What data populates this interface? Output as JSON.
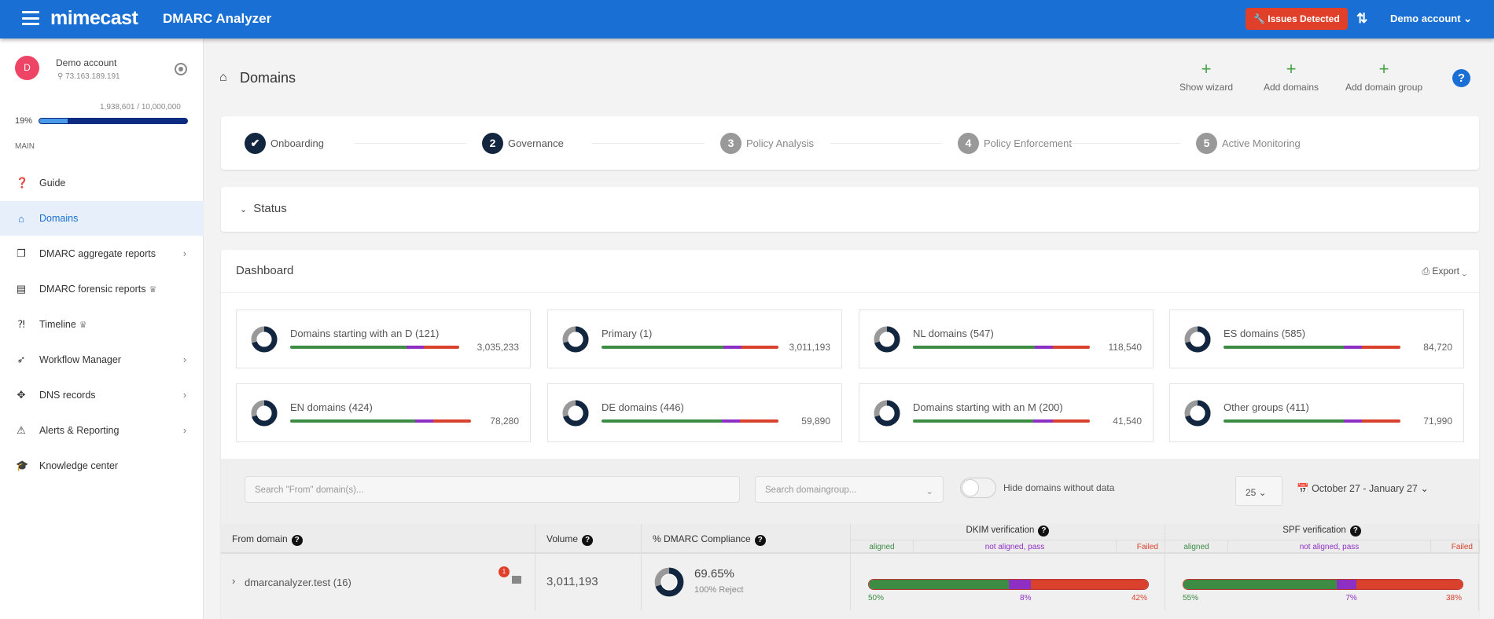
{
  "header": {
    "logo": "mimecast",
    "app_title": "DMARC Analyzer",
    "issues_label": "Issues Detected",
    "account_label": "Demo account ⌄"
  },
  "sidebar": {
    "avatar_letter": "D",
    "account_name": "Demo account",
    "ip": "73.163.189.191",
    "quota": "1,938,601 / 10,000,000",
    "quota_pct_label": "19%",
    "quota_fraction": 0.19,
    "section_label": "MAIN",
    "items": [
      {
        "label": "Guide",
        "icon": "guide-icon",
        "glyph": "❓",
        "chev": false,
        "crown": false,
        "active": false
      },
      {
        "label": "Domains",
        "icon": "home-icon",
        "glyph": "⌂",
        "chev": false,
        "crown": false,
        "active": true
      },
      {
        "label": "DMARC aggregate reports",
        "icon": "copy-icon",
        "glyph": "❐",
        "chev": true,
        "crown": false,
        "active": false
      },
      {
        "label": "DMARC forensic reports",
        "icon": "file-icon",
        "glyph": "▤",
        "chev": false,
        "crown": true,
        "active": false
      },
      {
        "label": "Timeline",
        "icon": "timeline-icon",
        "glyph": "⁈",
        "chev": false,
        "crown": true,
        "active": false
      },
      {
        "label": "Workflow Manager",
        "icon": "rocket-icon",
        "glyph": "➶",
        "chev": true,
        "crown": false,
        "active": false
      },
      {
        "label": "DNS records",
        "icon": "lifebuoy-icon",
        "glyph": "✥",
        "chev": true,
        "crown": false,
        "active": false
      },
      {
        "label": "Alerts & Reporting",
        "icon": "warning-icon",
        "glyph": "⚠",
        "chev": true,
        "crown": false,
        "active": false
      },
      {
        "label": "Knowledge center",
        "icon": "graduation-cap-icon",
        "glyph": "🎓",
        "chev": false,
        "crown": false,
        "active": false
      }
    ]
  },
  "page": {
    "title": "Domains",
    "actions": [
      "Show wizard",
      "Add domains",
      "Add domain group"
    ]
  },
  "stepper": [
    {
      "num": "✔",
      "label": "Onboarding",
      "state": "done"
    },
    {
      "num": "2",
      "label": "Governance",
      "state": "cur"
    },
    {
      "num": "3",
      "label": "Policy Analysis",
      "state": "todo"
    },
    {
      "num": "4",
      "label": "Policy Enforcement",
      "state": "todo"
    },
    {
      "num": "5",
      "label": "Active Monitoring",
      "state": "todo"
    }
  ],
  "status": {
    "label": "Status"
  },
  "dashboard": {
    "title": "Dashboard",
    "export_label": "Export ⌄",
    "groups": [
      {
        "name": "Domains starting with an D (121)",
        "value": "3,035,233",
        "split": [
          0.69,
          0.1,
          0.21
        ]
      },
      {
        "name": "Primary (1)",
        "value": "3,011,193",
        "split": [
          0.69,
          0.1,
          0.21
        ]
      },
      {
        "name": "NL domains (547)",
        "value": "118,540",
        "split": [
          0.69,
          0.1,
          0.21
        ]
      },
      {
        "name": "ES domains (585)",
        "value": "84,720",
        "split": [
          0.68,
          0.1,
          0.22
        ]
      },
      {
        "name": "EN domains (424)",
        "value": "78,280",
        "split": [
          0.69,
          0.1,
          0.21
        ]
      },
      {
        "name": "DE domains (446)",
        "value": "59,890",
        "split": [
          0.68,
          0.1,
          0.22
        ]
      },
      {
        "name": "Domains starting with an M (200)",
        "value": "41,540",
        "split": [
          0.68,
          0.11,
          0.21
        ]
      },
      {
        "name": "Other groups (411)",
        "value": "71,990",
        "split": [
          0.68,
          0.1,
          0.22
        ]
      }
    ]
  },
  "filters": {
    "search_placeholder": "Search \"From\" domain(s)...",
    "group_placeholder": "Search domaingroup...",
    "hide_label": "Hide domains without data",
    "page_size": "25 ⌄",
    "date_range": "October 27 - January 27 ⌄"
  },
  "table": {
    "headers": {
      "from": "From domain",
      "volume": "Volume",
      "compliance": "% DMARC Compliance",
      "dkim": "DKIM verification",
      "spf": "SPF verification"
    },
    "sub": {
      "aligned": "aligned",
      "notaligned": "not aligned, pass",
      "failed": "Failed"
    },
    "row": {
      "domain": "dmarcanalyzer.test (16)",
      "badge": "1",
      "volume": "3,011,193",
      "compliance": "69.65%",
      "policy": "100% Reject",
      "dkim": {
        "aligned": "50%",
        "notaligned": "8%",
        "failed": "42%",
        "split": [
          0.5,
          0.08,
          0.42
        ]
      },
      "spf": {
        "aligned": "55%",
        "notaligned": "7%",
        "failed": "38%",
        "split": [
          0.55,
          0.07,
          0.38
        ]
      }
    }
  },
  "colors": {
    "green": "#3c8c43",
    "purple": "#8e2fc4",
    "red": "#d9412c",
    "navy": "#12263f"
  }
}
